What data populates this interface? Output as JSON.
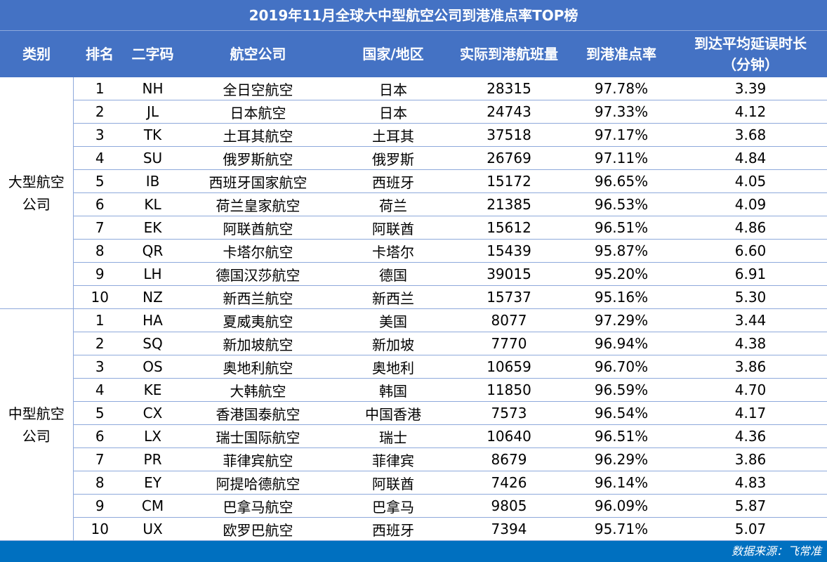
{
  "title": "2019年11月全球大中型航空公司到港准点率TOP榜",
  "headers": [
    "类别",
    "排名",
    "二字码",
    "航空公司",
    "国家/地区",
    "实际到港航班量",
    "到港准点率",
    "到达平均延误时长\n（分钟）"
  ],
  "groups": [
    {
      "category": "大型航空\n公司",
      "rows": [
        [
          "1",
          "NH",
          "全日空航空",
          "日本",
          "28315",
          "97.78%",
          "3.39"
        ],
        [
          "2",
          "JL",
          "日本航空",
          "日本",
          "24743",
          "97.33%",
          "4.12"
        ],
        [
          "3",
          "TK",
          "土耳其航空",
          "土耳其",
          "37518",
          "97.17%",
          "3.68"
        ],
        [
          "4",
          "SU",
          "俄罗斯航空",
          "俄罗斯",
          "26769",
          "97.11%",
          "4.84"
        ],
        [
          "5",
          "IB",
          "西班牙国家航空",
          "西班牙",
          "15172",
          "96.65%",
          "4.05"
        ],
        [
          "6",
          "KL",
          "荷兰皇家航空",
          "荷兰",
          "21385",
          "96.53%",
          "4.09"
        ],
        [
          "7",
          "EK",
          "阿联酋航空",
          "阿联酋",
          "15612",
          "96.51%",
          "4.86"
        ],
        [
          "8",
          "QR",
          "卡塔尔航空",
          "卡塔尔",
          "15439",
          "95.87%",
          "6.60"
        ],
        [
          "9",
          "LH",
          "德国汉莎航空",
          "德国",
          "39015",
          "95.20%",
          "6.91"
        ],
        [
          "10",
          "NZ",
          "新西兰航空",
          "新西兰",
          "15737",
          "95.16%",
          "5.30"
        ]
      ]
    },
    {
      "category": "中型航空\n公司",
      "rows": [
        [
          "1",
          "HA",
          "夏威夷航空",
          "美国",
          "8077",
          "97.29%",
          "3.44"
        ],
        [
          "2",
          "SQ",
          "新加坡航空",
          "新加坡",
          "7770",
          "96.94%",
          "4.38"
        ],
        [
          "3",
          "OS",
          "奥地利航空",
          "奥地利",
          "10659",
          "96.70%",
          "3.86"
        ],
        [
          "4",
          "KE",
          "大韩航空",
          "韩国",
          "11850",
          "96.59%",
          "4.70"
        ],
        [
          "5",
          "CX",
          "香港国泰航空",
          "中国香港",
          "7573",
          "96.54%",
          "4.17"
        ],
        [
          "6",
          "LX",
          "瑞士国际航空",
          "瑞士",
          "10640",
          "96.51%",
          "4.36"
        ],
        [
          "7",
          "PR",
          "菲律宾航空",
          "菲律宾",
          "8679",
          "96.29%",
          "3.86"
        ],
        [
          "8",
          "EY",
          "阿提哈德航空",
          "阿联酋",
          "7426",
          "96.14%",
          "4.83"
        ],
        [
          "9",
          "CM",
          "巴拿马航空",
          "巴拿马",
          "9805",
          "96.09%",
          "5.87"
        ],
        [
          "10",
          "UX",
          "欧罗巴航空",
          "西班牙",
          "7394",
          "95.71%",
          "5.07"
        ]
      ]
    }
  ],
  "footer": "数据来源：飞常准"
}
